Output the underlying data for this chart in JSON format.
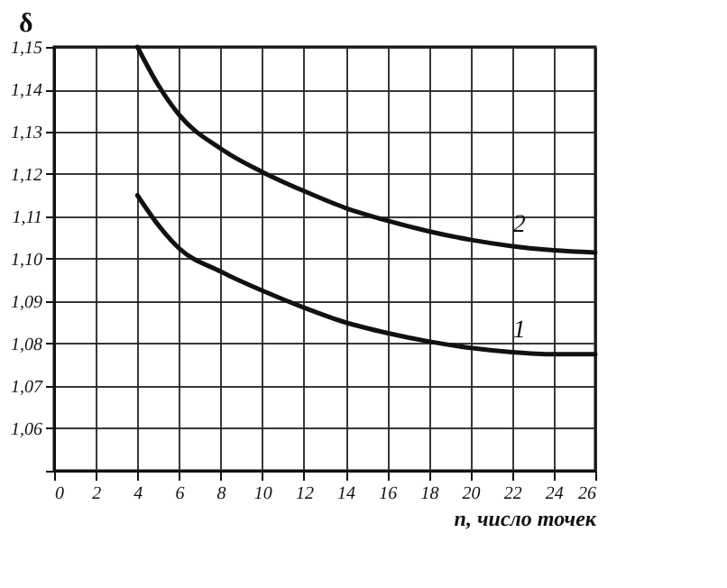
{
  "chart_data": {
    "type": "line",
    "xlabel": "n, число точек",
    "ylabel": "δ",
    "x": [
      4,
      5,
      6,
      8,
      10,
      12,
      14,
      16,
      18,
      20,
      22,
      24,
      26
    ],
    "series": [
      {
        "name": "1",
        "color": "#111111",
        "values": [
          1.115,
          1.108,
          1.1025,
          1.097,
          1.0925,
          1.0885,
          1.085,
          1.0825,
          1.0805,
          1.079,
          1.078,
          1.0775,
          1.0775
        ]
      },
      {
        "name": "2",
        "color": "#111111",
        "values": [
          1.15,
          1.141,
          1.134,
          1.126,
          1.1205,
          1.116,
          1.112,
          1.109,
          1.1065,
          1.1045,
          1.103,
          1.102,
          1.1015
        ]
      }
    ],
    "xlim": [
      0,
      26
    ],
    "xticks": [
      0,
      2,
      4,
      6,
      8,
      10,
      12,
      14,
      16,
      18,
      20,
      22,
      24,
      26
    ],
    "ylim": [
      1.05,
      1.15
    ],
    "yticks": [
      {
        "value": 1.05,
        "label": null
      },
      {
        "value": 1.06,
        "label": "1,06"
      },
      {
        "value": 1.07,
        "label": "1,07"
      },
      {
        "value": 1.08,
        "label": "1,08"
      },
      {
        "value": 1.09,
        "label": "1,09"
      },
      {
        "value": 1.1,
        "label": "1,10"
      },
      {
        "value": 1.11,
        "label": "1,11"
      },
      {
        "value": 1.12,
        "label": "1,12"
      },
      {
        "value": 1.13,
        "label": "1,13"
      },
      {
        "value": 1.14,
        "label": "1,14"
      },
      {
        "value": 1.15,
        "label": "1,15"
      }
    ],
    "grid": true,
    "line_style": "solid",
    "marker": "none"
  }
}
